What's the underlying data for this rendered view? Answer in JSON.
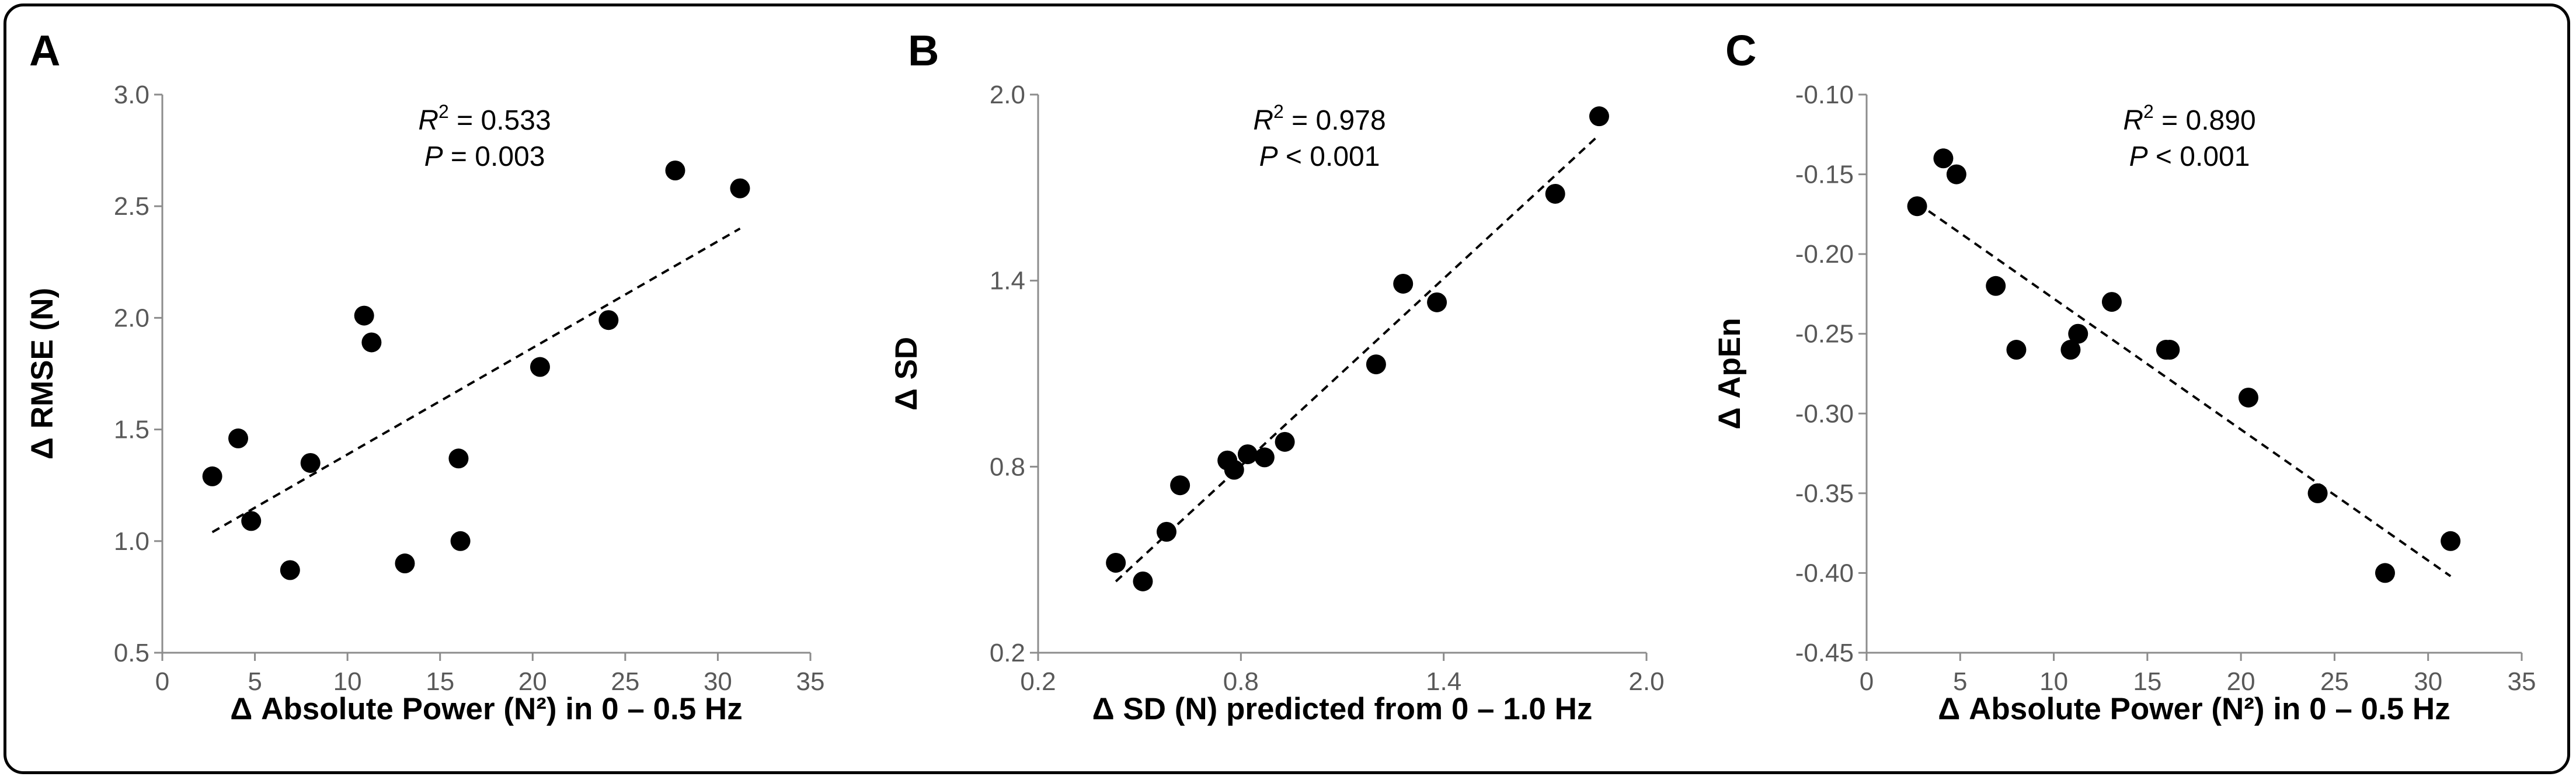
{
  "chart_data": [
    {
      "type": "scatter",
      "panel": "A",
      "xlabel": "Δ Absolute Power (N²) in 0 – 0.5 Hz",
      "ylabel": "Δ RMSE (N)",
      "xlim": [
        0,
        35
      ],
      "ylim": [
        0.5,
        3.0
      ],
      "xticks": [
        0,
        5,
        10,
        15,
        20,
        25,
        30,
        35
      ],
      "yticks": [
        0.5,
        1.0,
        1.5,
        2.0,
        2.5,
        3.0
      ],
      "ytick_labels": [
        "0.5",
        "1.0",
        "1.5",
        "2.0",
        "2.5",
        "3.0"
      ],
      "x": [
        2.7,
        4.1,
        4.8,
        6.9,
        8.0,
        10.9,
        11.3,
        13.1,
        16.0,
        16.1,
        20.4,
        24.1,
        27.7,
        31.2
      ],
      "y": [
        1.29,
        1.46,
        1.09,
        0.87,
        1.35,
        2.01,
        1.89,
        0.9,
        1.37,
        1.0,
        1.78,
        1.99,
        2.66,
        2.58
      ],
      "trendline": {
        "x": [
          2.7,
          31.2
        ],
        "y": [
          1.04,
          2.4
        ]
      },
      "r2_label": "R",
      "r2_sup": "2",
      "r2_value": " = 0.533",
      "p_label": "P",
      "p_value": " = 0.003"
    },
    {
      "type": "scatter",
      "panel": "B",
      "xlabel": "Δ SD (N) predicted from 0 – 1.0 Hz",
      "ylabel": "Δ SD",
      "xlim": [
        0.2,
        2.0
      ],
      "ylim": [
        0.2,
        2.0
      ],
      "xticks": [
        0.2,
        0.8,
        1.4,
        2.0
      ],
      "yticks": [
        0.2,
        0.8,
        1.4,
        2.0
      ],
      "xtick_labels": [
        "0.2",
        "0.8",
        "1.4",
        "2.0"
      ],
      "ytick_labels": [
        "0.2",
        "0.8",
        "1.4",
        "2.0"
      ],
      "x": [
        0.43,
        0.51,
        0.58,
        0.62,
        0.76,
        0.78,
        0.82,
        0.87,
        0.93,
        1.2,
        1.28,
        1.38,
        1.73,
        1.86
      ],
      "y": [
        0.49,
        0.43,
        0.59,
        0.74,
        0.82,
        0.79,
        0.84,
        0.83,
        0.88,
        1.13,
        1.39,
        1.33,
        1.68,
        1.93
      ],
      "trendline": {
        "x": [
          0.43,
          1.86
        ],
        "y": [
          0.43,
          1.87
        ]
      },
      "r2_label": "R",
      "r2_sup": "2",
      "r2_value": " = 0.978",
      "p_label": "P",
      "p_value": " < 0.001"
    },
    {
      "type": "scatter",
      "panel": "C",
      "xlabel": "Δ Absolute Power (N²) in 0 – 0.5 Hz",
      "ylabel": "Δ ApEn",
      "xlim": [
        0,
        35
      ],
      "ylim": [
        -0.45,
        -0.1
      ],
      "xticks": [
        0,
        5,
        10,
        15,
        20,
        25,
        30,
        35
      ],
      "yticks": [
        -0.45,
        -0.4,
        -0.35,
        -0.3,
        -0.25,
        -0.2,
        -0.15,
        -0.1
      ],
      "ytick_labels": [
        "-0.45",
        "-0.40",
        "-0.35",
        "-0.30",
        "-0.25",
        "-0.20",
        "-0.15",
        "-0.10"
      ],
      "x": [
        2.7,
        4.1,
        4.8,
        6.9,
        8.0,
        10.9,
        11.3,
        13.1,
        16.0,
        16.2,
        20.4,
        24.1,
        27.7,
        31.2
      ],
      "y": [
        -0.17,
        -0.14,
        -0.15,
        -0.22,
        -0.26,
        -0.26,
        -0.25,
        -0.23,
        -0.26,
        -0.26,
        -0.29,
        -0.35,
        -0.4,
        -0.38
      ],
      "trendline": {
        "x": [
          2.7,
          31.2
        ],
        "y": [
          -0.168,
          -0.402
        ]
      },
      "r2_label": "R",
      "r2_sup": "2",
      "r2_value": " = 0.890",
      "p_label": "P",
      "p_value": " < 0.001"
    }
  ]
}
